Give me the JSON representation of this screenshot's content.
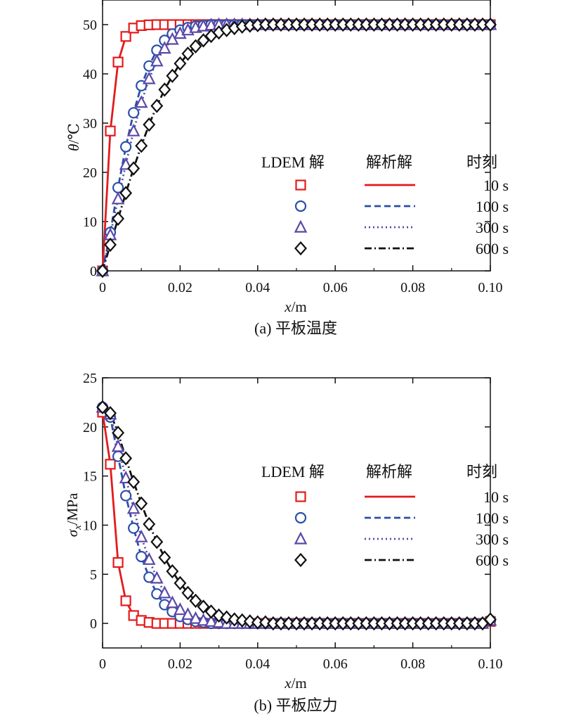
{
  "chart_data": [
    {
      "type": "line",
      "caption": "(a) 平板温度",
      "xlabel": "x/m",
      "ylabel": "θ/℃",
      "xlim": [
        0,
        0.1
      ],
      "ylim": [
        0,
        55
      ],
      "xticks": [
        "0",
        "0.02",
        "0.04",
        "0.06",
        "0.08",
        "0.10"
      ],
      "yticks": [
        "0",
        "10",
        "20",
        "30",
        "40",
        "50"
      ],
      "legend": {
        "headers": [
          "LDEM 解",
          "解析解",
          "时刻"
        ],
        "placement": "center-right"
      },
      "series": [
        {
          "name": "10 s",
          "color": "#e41a1c",
          "marker": "square",
          "line_style": "solid",
          "x": [
            0,
            0.002,
            0.004,
            0.006,
            0.008,
            0.01,
            0.012,
            0.014,
            0.016,
            0.018,
            0.02,
            0.022,
            0.024,
            0.026,
            0.028,
            0.03,
            0.032,
            0.034,
            0.036,
            0.038,
            0.04,
            0.042,
            0.044,
            0.046,
            0.048,
            0.05,
            0.052,
            0.054,
            0.056,
            0.058,
            0.06,
            0.062,
            0.064,
            0.066,
            0.068,
            0.07,
            0.072,
            0.074,
            0.076,
            0.078,
            0.08,
            0.082,
            0.084,
            0.086,
            0.088,
            0.09,
            0.092,
            0.094,
            0.096,
            0.098,
            0.1
          ],
          "y": [
            0,
            28.4,
            42.4,
            47.6,
            49.3,
            49.8,
            49.95,
            50,
            50,
            50,
            50,
            50,
            50,
            50,
            50,
            50,
            50,
            50,
            50,
            50,
            50,
            50,
            50,
            50,
            50,
            50,
            50,
            50,
            50,
            50,
            50,
            50,
            50,
            50,
            50,
            50,
            50,
            50,
            50,
            50,
            50,
            50,
            50,
            50,
            50,
            50,
            50,
            50,
            50,
            50,
            50
          ]
        },
        {
          "name": "100 s",
          "color": "#2a4fa8",
          "marker": "circle",
          "line_style": "dashed",
          "x": [
            0,
            0.002,
            0.004,
            0.006,
            0.008,
            0.01,
            0.012,
            0.014,
            0.016,
            0.018,
            0.02,
            0.022,
            0.024,
            0.026,
            0.028,
            0.03,
            0.032,
            0.034,
            0.036,
            0.038,
            0.04,
            0.042,
            0.044,
            0.046,
            0.048,
            0.05,
            0.052,
            0.054,
            0.056,
            0.058,
            0.06,
            0.062,
            0.064,
            0.066,
            0.068,
            0.07,
            0.072,
            0.074,
            0.076,
            0.078,
            0.08,
            0.082,
            0.084,
            0.086,
            0.088,
            0.09,
            0.092,
            0.094,
            0.096,
            0.098,
            0.1
          ],
          "y": [
            0,
            7.8,
            16.9,
            25.2,
            32.1,
            37.6,
            41.6,
            44.8,
            46.8,
            48.1,
            48.9,
            49.4,
            49.7,
            49.85,
            50,
            50,
            50,
            50,
            50,
            50,
            50,
            50,
            50,
            50,
            50,
            50,
            50,
            50,
            50,
            50,
            50,
            50,
            50,
            50,
            50,
            50,
            50,
            50,
            50,
            50,
            50,
            50,
            50,
            50,
            50,
            50,
            50,
            50,
            50,
            50,
            50
          ]
        },
        {
          "name": "300 s",
          "color": "#5b48a8",
          "marker": "triangle",
          "line_style": "dotted",
          "x": [
            0,
            0.002,
            0.004,
            0.006,
            0.008,
            0.01,
            0.012,
            0.014,
            0.016,
            0.018,
            0.02,
            0.022,
            0.024,
            0.026,
            0.028,
            0.03,
            0.032,
            0.034,
            0.036,
            0.038,
            0.04,
            0.042,
            0.044,
            0.046,
            0.048,
            0.05,
            0.052,
            0.054,
            0.056,
            0.058,
            0.06,
            0.062,
            0.064,
            0.066,
            0.068,
            0.07,
            0.072,
            0.074,
            0.076,
            0.078,
            0.08,
            0.082,
            0.084,
            0.086,
            0.088,
            0.09,
            0.092,
            0.094,
            0.096,
            0.098,
            0.1
          ],
          "y": [
            0,
            7.3,
            14.6,
            21.6,
            28.4,
            34.2,
            39.0,
            42.6,
            45.2,
            47.0,
            48.2,
            48.9,
            49.4,
            49.7,
            49.9,
            50,
            50,
            50,
            50,
            50,
            50,
            50,
            50,
            50,
            50,
            50,
            50,
            50,
            50,
            50,
            50,
            50,
            50,
            50,
            50,
            50,
            50,
            50,
            50,
            50,
            50,
            50,
            50,
            50,
            50,
            50,
            50,
            50,
            50,
            50,
            50
          ]
        },
        {
          "name": "600 s",
          "color": "#111111",
          "marker": "diamond",
          "line_style": "dashdot",
          "x": [
            0,
            0.002,
            0.004,
            0.006,
            0.008,
            0.01,
            0.012,
            0.014,
            0.016,
            0.018,
            0.02,
            0.022,
            0.024,
            0.026,
            0.028,
            0.03,
            0.032,
            0.034,
            0.036,
            0.038,
            0.04,
            0.042,
            0.044,
            0.046,
            0.048,
            0.05,
            0.052,
            0.054,
            0.056,
            0.058,
            0.06,
            0.062,
            0.064,
            0.066,
            0.068,
            0.07,
            0.072,
            0.074,
            0.076,
            0.078,
            0.08,
            0.082,
            0.084,
            0.086,
            0.088,
            0.09,
            0.092,
            0.094,
            0.096,
            0.098,
            0.1
          ],
          "y": [
            0,
            5.3,
            10.6,
            15.8,
            20.8,
            25.4,
            29.7,
            33.5,
            36.8,
            39.6,
            42.1,
            44.1,
            45.6,
            46.8,
            47.7,
            48.4,
            48.9,
            49.3,
            49.6,
            49.8,
            49.9,
            50,
            50,
            50,
            50,
            50,
            50,
            50,
            50,
            50,
            50,
            50,
            50,
            50,
            50,
            50,
            50,
            50,
            50,
            50,
            50,
            50,
            50,
            50,
            50,
            50,
            50,
            50,
            50,
            50,
            50
          ]
        }
      ]
    },
    {
      "type": "line",
      "caption": "(b) 平板应力",
      "xlabel": "x/m",
      "ylabel": "σx/MPa",
      "xlim": [
        0,
        0.1
      ],
      "ylim": [
        -2.5,
        25
      ],
      "xticks": [
        "0",
        "0.02",
        "0.04",
        "0.06",
        "0.08",
        "0.10"
      ],
      "yticks": [
        "0",
        "5",
        "10",
        "15",
        "20",
        "25"
      ],
      "legend": {
        "headers": [
          "LDEM 解",
          "解析解",
          "时刻"
        ],
        "placement": "top-right"
      },
      "series": [
        {
          "name": "10 s",
          "color": "#e41a1c",
          "marker": "square",
          "line_style": "solid",
          "x": [
            0,
            0.002,
            0.004,
            0.006,
            0.008,
            0.01,
            0.012,
            0.014,
            0.016,
            0.018,
            0.02,
            0.022,
            0.024,
            0.026,
            0.028,
            0.03,
            0.032,
            0.034,
            0.036,
            0.038,
            0.04,
            0.042,
            0.044,
            0.046,
            0.048,
            0.05,
            0.052,
            0.054,
            0.056,
            0.058,
            0.06,
            0.062,
            0.064,
            0.066,
            0.068,
            0.07,
            0.072,
            0.074,
            0.076,
            0.078,
            0.08,
            0.082,
            0.084,
            0.086,
            0.088,
            0.09,
            0.092,
            0.094,
            0.096,
            0.098,
            0.1
          ],
          "y": [
            21.5,
            16.2,
            6.2,
            2.3,
            0.8,
            0.3,
            0.1,
            0,
            0,
            0,
            0,
            0,
            0,
            0,
            0,
            0,
            0,
            0,
            0,
            0,
            0,
            0,
            0,
            0,
            0,
            0,
            0,
            0,
            0,
            0,
            0,
            0,
            0,
            0,
            0,
            0,
            0,
            0,
            0,
            0,
            0,
            0,
            0,
            0,
            0,
            0,
            0,
            0,
            0,
            0,
            0.2
          ]
        },
        {
          "name": "100 s",
          "color": "#2a4fa8",
          "marker": "circle",
          "line_style": "dashed",
          "x": [
            0,
            0.002,
            0.004,
            0.006,
            0.008,
            0.01,
            0.012,
            0.014,
            0.016,
            0.018,
            0.02,
            0.022,
            0.024,
            0.026,
            0.028,
            0.03,
            0.032,
            0.034,
            0.036,
            0.038,
            0.04,
            0.042,
            0.044,
            0.046,
            0.048,
            0.05,
            0.052,
            0.054,
            0.056,
            0.058,
            0.06,
            0.062,
            0.064,
            0.066,
            0.068,
            0.07,
            0.072,
            0.074,
            0.076,
            0.078,
            0.08,
            0.082,
            0.084,
            0.086,
            0.088,
            0.09,
            0.092,
            0.094,
            0.096,
            0.098,
            0.1
          ],
          "y": [
            22.0,
            21.0,
            17.0,
            13.0,
            9.7,
            6.8,
            4.7,
            3.0,
            1.9,
            1.2,
            0.7,
            0.4,
            0.2,
            0.1,
            0,
            0,
            0,
            0,
            0,
            0,
            0,
            0,
            0,
            0,
            0,
            0,
            0,
            0,
            0,
            0,
            0,
            0,
            0,
            0,
            0,
            0,
            0,
            0,
            0,
            0,
            0,
            0,
            0,
            0,
            0,
            0,
            0,
            0,
            0,
            0,
            0.3
          ]
        },
        {
          "name": "300 s",
          "color": "#5b48a8",
          "marker": "triangle",
          "line_style": "dotted",
          "x": [
            0,
            0.002,
            0.004,
            0.006,
            0.008,
            0.01,
            0.012,
            0.014,
            0.016,
            0.018,
            0.02,
            0.022,
            0.024,
            0.026,
            0.028,
            0.03,
            0.032,
            0.034,
            0.036,
            0.038,
            0.04,
            0.042,
            0.044,
            0.046,
            0.048,
            0.05,
            0.052,
            0.054,
            0.056,
            0.058,
            0.06,
            0.062,
            0.064,
            0.066,
            0.068,
            0.07,
            0.072,
            0.074,
            0.076,
            0.078,
            0.08,
            0.082,
            0.084,
            0.086,
            0.088,
            0.09,
            0.092,
            0.094,
            0.096,
            0.098,
            0.1
          ],
          "y": [
            22.0,
            21.3,
            18.0,
            14.8,
            11.7,
            8.8,
            6.5,
            4.6,
            3.1,
            2.1,
            1.4,
            0.9,
            0.5,
            0.3,
            0.2,
            0.1,
            0,
            0,
            0,
            0,
            0,
            0,
            0,
            0,
            0,
            0,
            0,
            0,
            0,
            0,
            0,
            0,
            0,
            0,
            0,
            0,
            0,
            0,
            0,
            0,
            0,
            0,
            0,
            0,
            0,
            0,
            0,
            0,
            0,
            0,
            0.3
          ]
        },
        {
          "name": "600 s",
          "color": "#111111",
          "marker": "diamond",
          "line_style": "dashdot",
          "x": [
            0,
            0.002,
            0.004,
            0.006,
            0.008,
            0.01,
            0.012,
            0.014,
            0.016,
            0.018,
            0.02,
            0.022,
            0.024,
            0.026,
            0.028,
            0.03,
            0.032,
            0.034,
            0.036,
            0.038,
            0.04,
            0.042,
            0.044,
            0.046,
            0.048,
            0.05,
            0.052,
            0.054,
            0.056,
            0.058,
            0.06,
            0.062,
            0.064,
            0.066,
            0.068,
            0.07,
            0.072,
            0.074,
            0.076,
            0.078,
            0.08,
            0.082,
            0.084,
            0.086,
            0.088,
            0.09,
            0.092,
            0.094,
            0.096,
            0.098,
            0.1
          ],
          "y": [
            22.0,
            21.4,
            19.4,
            16.8,
            14.4,
            12.2,
            10.1,
            8.3,
            6.7,
            5.3,
            4.1,
            3.1,
            2.3,
            1.7,
            1.2,
            0.8,
            0.6,
            0.4,
            0.3,
            0.2,
            0.1,
            0.1,
            0,
            0,
            0,
            0,
            0,
            0,
            0,
            0,
            0,
            0,
            0,
            0,
            0,
            0,
            0,
            0,
            0,
            0,
            0,
            0,
            0,
            0,
            0,
            0,
            0,
            0,
            0,
            0,
            0.4
          ]
        }
      ]
    }
  ]
}
